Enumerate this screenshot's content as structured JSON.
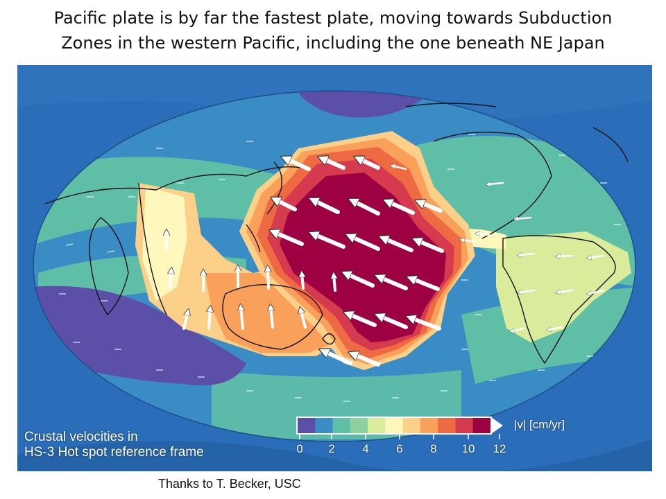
{
  "slide": {
    "title_line1": "Pacific plate is by far the fastest plate, moving towards Subduction",
    "title_line2": "Zones in the western Pacific, including the one beneath NE Japan",
    "credit": "Thanks to T. Becker, USC"
  },
  "map": {
    "caption_line1": "Crustal velocities in",
    "caption_line2": "HS-3 Hot spot reference frame",
    "background_color": "#2a6db8",
    "legend": {
      "unit_label": "|v| [cm/yr]",
      "tick_labels": [
        "0",
        "2",
        "4",
        "6",
        "8",
        "10",
        "12"
      ],
      "colors": [
        "#5b4fa8",
        "#3a8cc4",
        "#5fbfa6",
        "#8fd0a0",
        "#d8ec9c",
        "#fff7bc",
        "#fdd08a",
        "#f9a15a",
        "#ee6a43",
        "#d53a4e",
        "#9e0142"
      ]
    }
  }
}
